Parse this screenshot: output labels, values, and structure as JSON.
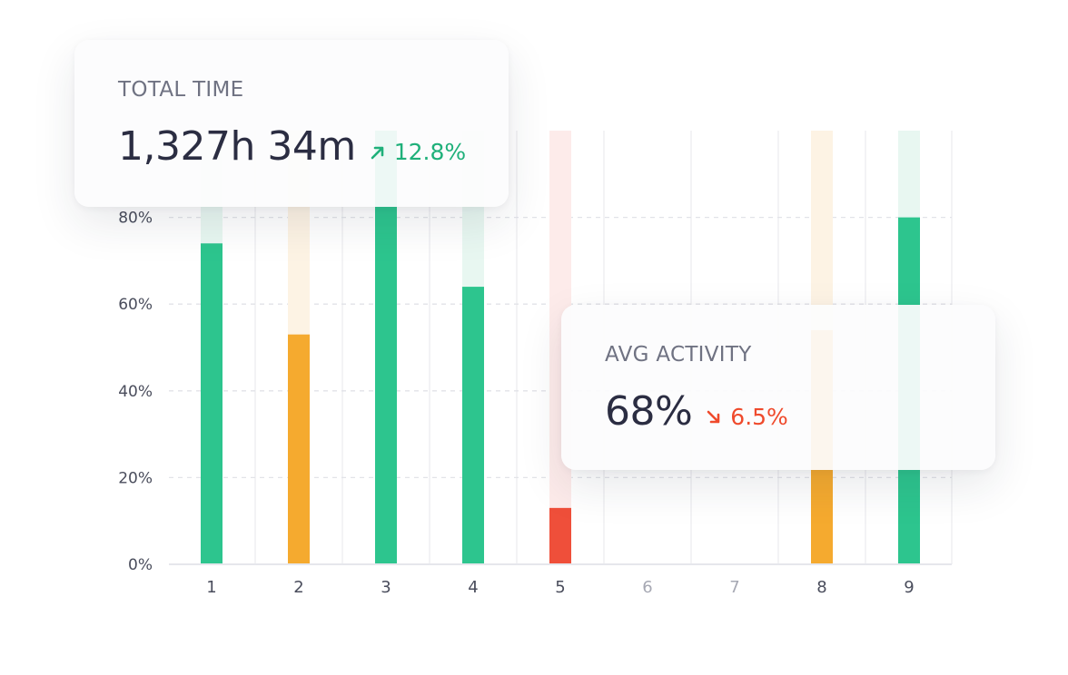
{
  "chart_data": {
    "type": "bar",
    "categories": [
      "1",
      "2",
      "3",
      "4",
      "5",
      "6",
      "7",
      "8",
      "9"
    ],
    "values": [
      74,
      53,
      100,
      64,
      13,
      0,
      0,
      54,
      80
    ],
    "bar_status": [
      "good",
      "warning",
      "good",
      "good",
      "bad",
      "none",
      "none",
      "warning",
      "good"
    ],
    "y_ticks": [
      "0%",
      "20%",
      "40%",
      "60%",
      "80%"
    ],
    "ylim": [
      0,
      100
    ],
    "grid": true
  },
  "colors": {
    "good": "#2dc58e",
    "warning": "#f5aa2f",
    "bad": "#ef4f3a",
    "good_track": "#e8f7f1",
    "warning_track": "#fdf3e4",
    "bad_track": "#fdebea",
    "axis": "#e6e7ec",
    "grid": "#e2e3e8",
    "label": "#4a4d5c",
    "label_muted": "#a6a8b3"
  },
  "cards": {
    "total_time": {
      "label": "TOTAL TIME",
      "value": "1,327h 34m",
      "trend": "12.8%",
      "trend_direction": "up",
      "trend_icon": "arrow-up-right-icon"
    },
    "avg_activity": {
      "label": "AVG ACTIVITY",
      "value": "68%",
      "trend": "6.5%",
      "trend_direction": "down",
      "trend_icon": "arrow-down-right-icon"
    }
  }
}
